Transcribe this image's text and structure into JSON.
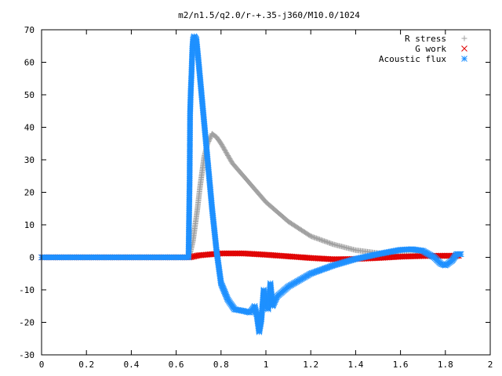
{
  "chart_data": {
    "type": "scatter",
    "title": "m2/n1.5/q2.0/r-+.35-j360/M10.0/1024",
    "xlabel": "",
    "ylabel": "",
    "xlim": [
      0,
      2
    ],
    "ylim": [
      -30,
      70
    ],
    "x_ticks": [
      "0",
      "0.2",
      "0.4",
      "0.6",
      "0.8",
      "1",
      "1.2",
      "1.4",
      "1.6",
      "1.8",
      "2"
    ],
    "y_ticks": [
      "-30",
      "-20",
      "-10",
      "0",
      "10",
      "20",
      "30",
      "40",
      "50",
      "60",
      "70"
    ],
    "grid": false,
    "legend_position": "top-right",
    "series": [
      {
        "name": "R stress",
        "marker": "plus",
        "color": "#a0a0a0",
        "points": [
          [
            0.0,
            0
          ],
          [
            0.3,
            0
          ],
          [
            0.6,
            0
          ],
          [
            0.655,
            0
          ],
          [
            0.665,
            2
          ],
          [
            0.675,
            5
          ],
          [
            0.685,
            10
          ],
          [
            0.695,
            15
          ],
          [
            0.705,
            21
          ],
          [
            0.715,
            26
          ],
          [
            0.725,
            31
          ],
          [
            0.74,
            35
          ],
          [
            0.76,
            38
          ],
          [
            0.78,
            37
          ],
          [
            0.8,
            35
          ],
          [
            0.85,
            29
          ],
          [
            0.9,
            25
          ],
          [
            0.95,
            21
          ],
          [
            1.0,
            17
          ],
          [
            1.05,
            14
          ],
          [
            1.1,
            11
          ],
          [
            1.2,
            6.5
          ],
          [
            1.3,
            4
          ],
          [
            1.4,
            2.2
          ],
          [
            1.5,
            1.3
          ],
          [
            1.6,
            0.8
          ],
          [
            1.7,
            0.5
          ],
          [
            1.8,
            0.3
          ],
          [
            1.86,
            0.2
          ]
        ]
      },
      {
        "name": "G work",
        "marker": "cross",
        "color": "#e00000",
        "points": [
          [
            0.0,
            0
          ],
          [
            0.3,
            0
          ],
          [
            0.6,
            0
          ],
          [
            0.66,
            0
          ],
          [
            0.7,
            0.6
          ],
          [
            0.8,
            1.2
          ],
          [
            0.9,
            1.2
          ],
          [
            1.0,
            0.8
          ],
          [
            1.1,
            0.3
          ],
          [
            1.2,
            -0.2
          ],
          [
            1.3,
            -0.6
          ],
          [
            1.4,
            -0.5
          ],
          [
            1.5,
            -0.2
          ],
          [
            1.6,
            0.2
          ],
          [
            1.7,
            0.4
          ],
          [
            1.8,
            0.5
          ],
          [
            1.86,
            0.5
          ]
        ]
      },
      {
        "name": "Acoustic flux",
        "marker": "star",
        "color": "#1e90ff",
        "points": [
          [
            0.0,
            0
          ],
          [
            0.3,
            0
          ],
          [
            0.6,
            0
          ],
          [
            0.655,
            0
          ],
          [
            0.66,
            24
          ],
          [
            0.662,
            44
          ],
          [
            0.665,
            51
          ],
          [
            0.668,
            56
          ],
          [
            0.672,
            64
          ],
          [
            0.675,
            67
          ],
          [
            0.68,
            68
          ],
          [
            0.69,
            67
          ],
          [
            0.7,
            60
          ],
          [
            0.72,
            45
          ],
          [
            0.74,
            30
          ],
          [
            0.76,
            15
          ],
          [
            0.78,
            2
          ],
          [
            0.8,
            -8
          ],
          [
            0.83,
            -13
          ],
          [
            0.86,
            -16
          ],
          [
            0.9,
            -16.5
          ],
          [
            0.93,
            -17
          ],
          [
            0.95,
            -15
          ],
          [
            0.96,
            -18
          ],
          [
            0.97,
            -23
          ],
          [
            0.98,
            -19
          ],
          [
            0.99,
            -10
          ],
          [
            1.0,
            -14
          ],
          [
            1.01,
            -16
          ],
          [
            1.02,
            -8
          ],
          [
            1.03,
            -15
          ],
          [
            1.05,
            -12
          ],
          [
            1.1,
            -9
          ],
          [
            1.2,
            -5
          ],
          [
            1.3,
            -2.5
          ],
          [
            1.4,
            -0.5
          ],
          [
            1.5,
            1
          ],
          [
            1.6,
            2.3
          ],
          [
            1.65,
            2.5
          ],
          [
            1.7,
            2
          ],
          [
            1.75,
            0
          ],
          [
            1.78,
            -2
          ],
          [
            1.8,
            -2.5
          ],
          [
            1.83,
            -1
          ],
          [
            1.85,
            1
          ],
          [
            1.87,
            1
          ]
        ]
      }
    ]
  }
}
